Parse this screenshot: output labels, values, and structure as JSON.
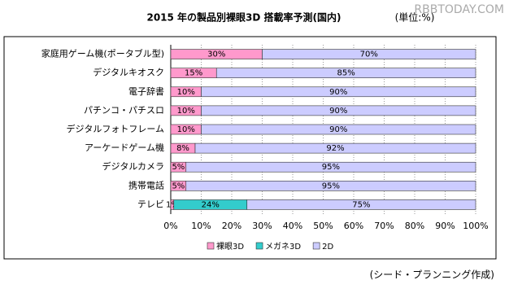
{
  "chart_data": {
    "type": "stacked-bar-horizontal",
    "title": "2015 年の製品別裸眼3D 搭載率予測(国内)",
    "unit": "(単位:%)",
    "watermark": "RBBTODAY.COM",
    "source": "(シード・プランニング作成)",
    "categories": [
      "家庭用ゲーム機(ポータブル型)",
      "デジタルキオスク",
      "電子辞書",
      "パチンコ・パチスロ",
      "デジタルフォトフレーム",
      "アーケードゲーム機",
      "デジタルカメラ",
      "携帯電話",
      "テレビ"
    ],
    "series": [
      {
        "name": "裸眼3D",
        "color": "#ff99cc",
        "values": [
          30,
          15,
          10,
          10,
          10,
          8,
          5,
          5,
          1
        ],
        "value_labels": [
          "30%",
          "15%",
          "10%",
          "10%",
          "10%",
          "8%",
          "5%",
          "5%",
          "1%"
        ]
      },
      {
        "name": "メガネ3D",
        "color": "#33cccc",
        "values": [
          0,
          0,
          0,
          0,
          0,
          0,
          0,
          0,
          24
        ],
        "value_labels": [
          null,
          null,
          null,
          null,
          null,
          null,
          null,
          null,
          "24%"
        ]
      },
      {
        "name": "2D",
        "color": "#ccccff",
        "values": [
          70,
          85,
          90,
          90,
          90,
          92,
          95,
          95,
          75
        ],
        "value_labels": [
          "70%",
          "85%",
          "90%",
          "90%",
          "90%",
          "92%",
          "95%",
          "95%",
          "75%"
        ]
      }
    ],
    "xlim": [
      0,
      100
    ],
    "xticks": [
      {
        "value": 0,
        "label": "0%"
      },
      {
        "value": 10,
        "label": "10%"
      },
      {
        "value": 20,
        "label": "20%"
      },
      {
        "value": 30,
        "label": "30%"
      },
      {
        "value": 40,
        "label": "40%"
      },
      {
        "value": 50,
        "label": "50%"
      },
      {
        "value": 60,
        "label": "60%"
      },
      {
        "value": 70,
        "label": "70%"
      },
      {
        "value": 80,
        "label": "80%"
      },
      {
        "value": 90,
        "label": "90%"
      },
      {
        "value": 100,
        "label": "100%"
      }
    ],
    "grid": true
  }
}
